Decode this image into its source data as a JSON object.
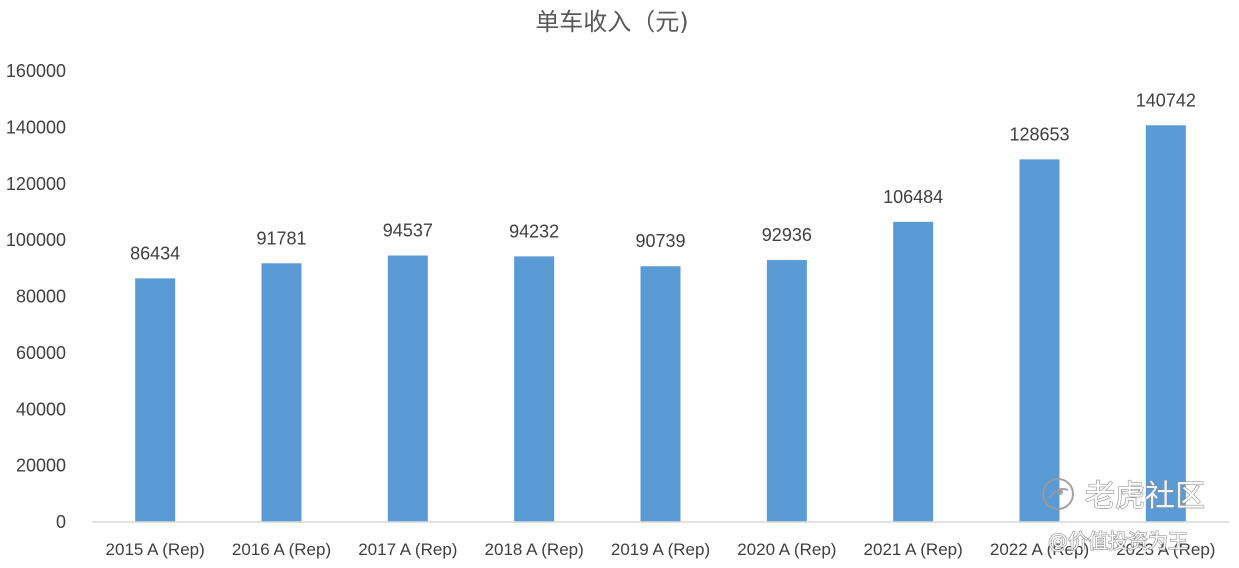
{
  "chart_data": {
    "type": "bar",
    "title": "单车收入（元)",
    "categories": [
      "2015 A (Rep)",
      "2016 A (Rep)",
      "2017 A (Rep)",
      "2018 A (Rep)",
      "2019 A (Rep)",
      "2020 A (Rep)",
      "2021 A (Rep)",
      "2022 A (Rep)",
      "2023 A (Rep)"
    ],
    "values": [
      86434,
      91781,
      94537,
      94232,
      90739,
      92936,
      106484,
      128653,
      140742
    ],
    "ylim": [
      0,
      160000
    ],
    "yticks": [
      0,
      20000,
      40000,
      60000,
      80000,
      100000,
      120000,
      140000,
      160000
    ],
    "data_labels": true,
    "grid": false,
    "legend": "none",
    "bar_color": "#5b9bd5"
  },
  "watermark": {
    "name": "老虎社区",
    "handle": "@价值投资为王"
  }
}
